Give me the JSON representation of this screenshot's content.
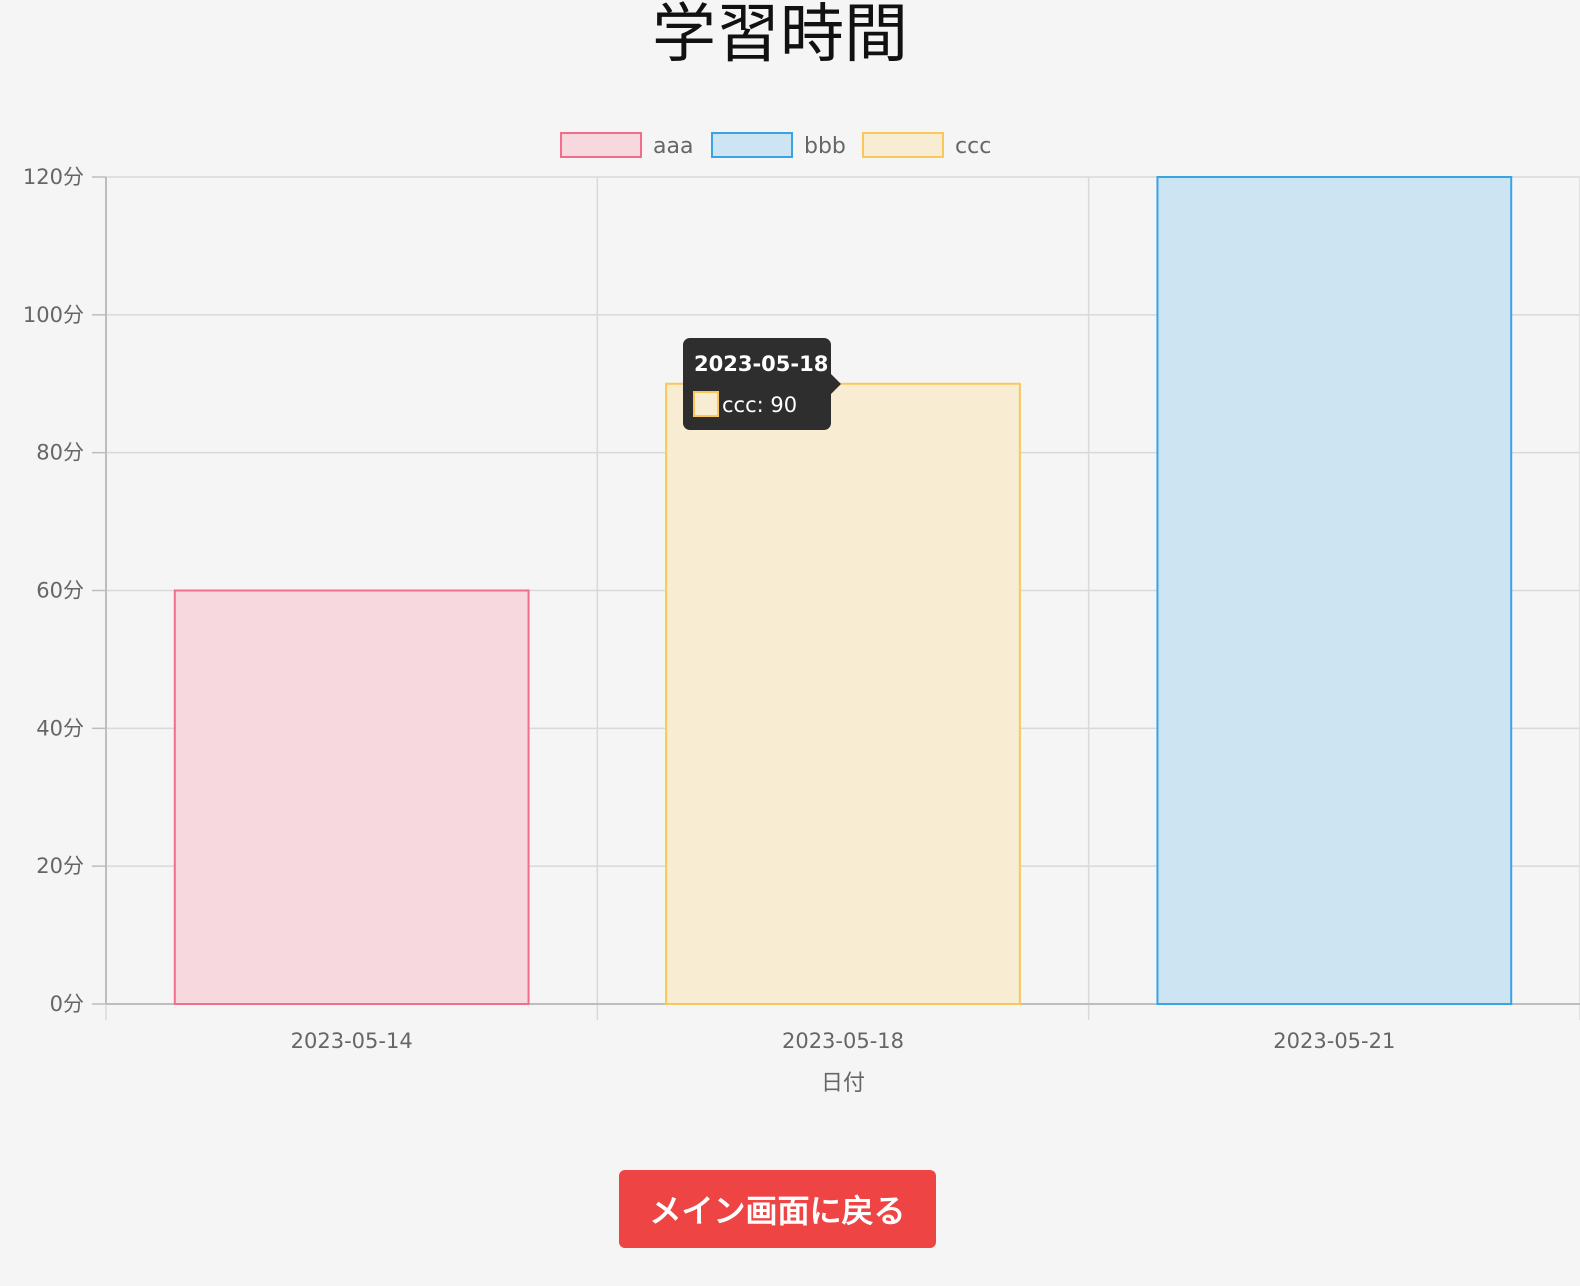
{
  "page": {
    "title": "学習時間",
    "back_button": "メイン画面に戻る"
  },
  "colors": {
    "aaa": {
      "border": "#f06e8a",
      "fill": "#f7d8df"
    },
    "bbb": {
      "border": "#3aa3e3",
      "fill": "#cde4f2"
    },
    "ccc": {
      "border": "#fcc75a",
      "fill": "#f8ecd3"
    },
    "grid": "#d9d9d9",
    "axis": "#bdbdbd",
    "tick_text": "#666666",
    "tooltip_bg": "#2e2e2e"
  },
  "chart_data": {
    "type": "bar",
    "title": "学習時間",
    "categories": [
      "2023-05-14",
      "2023-05-18",
      "2023-05-21"
    ],
    "series": [
      {
        "name": "aaa",
        "values": [
          60,
          null,
          null
        ]
      },
      {
        "name": "bbb",
        "values": [
          null,
          null,
          120
        ]
      },
      {
        "name": "ccc",
        "values": [
          null,
          90,
          null
        ]
      }
    ],
    "xlabel": "日付",
    "ylabel": "",
    "ylim": [
      0,
      120
    ],
    "yticks": [
      0,
      20,
      40,
      60,
      80,
      100,
      120
    ],
    "ytick_labels": [
      "0分",
      "20分",
      "40分",
      "60分",
      "80分",
      "100分",
      "120分"
    ],
    "grid": true,
    "legend_position": "top",
    "tooltip": {
      "title": "2023-05-18",
      "series": "ccc",
      "label": "ccc: 90"
    }
  }
}
